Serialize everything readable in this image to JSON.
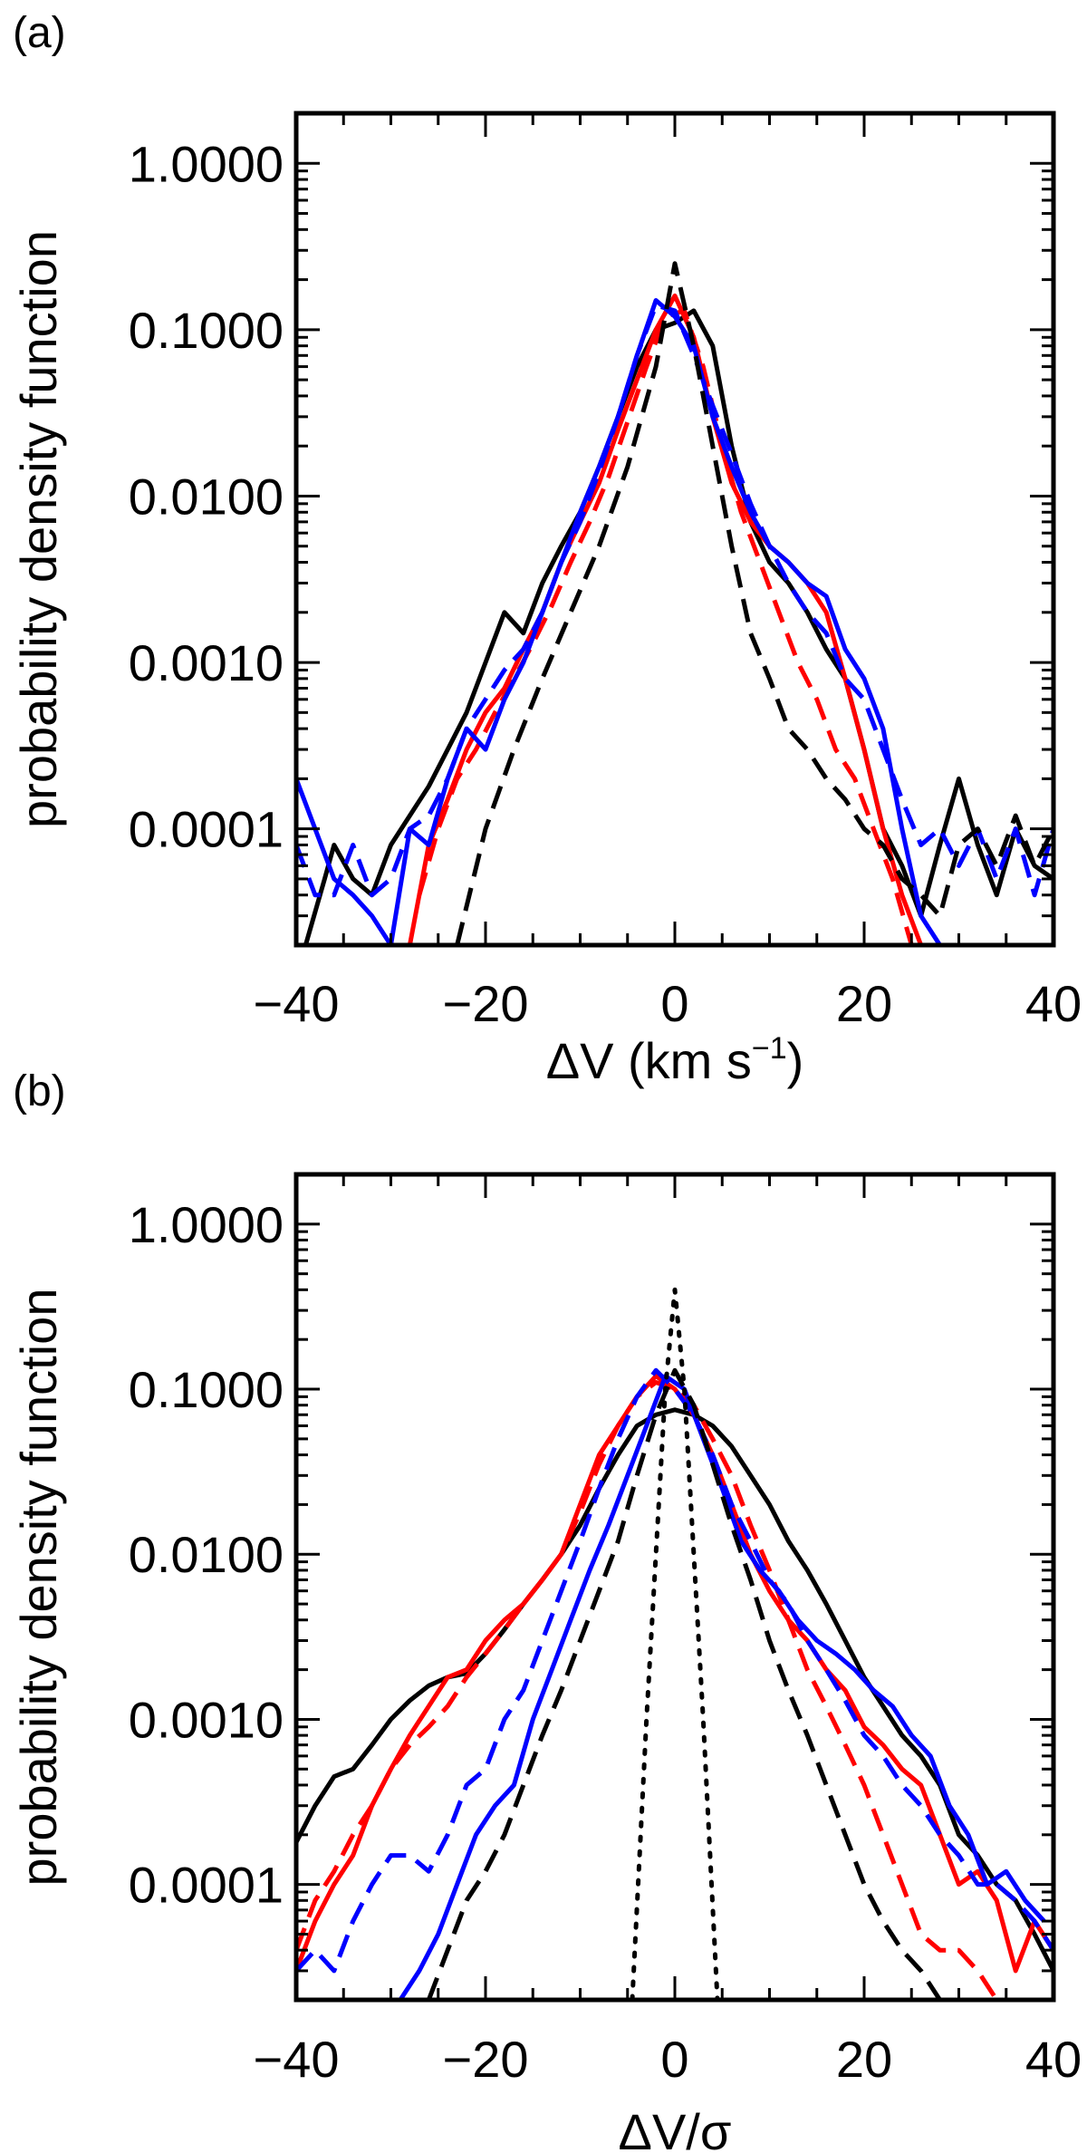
{
  "chart_data": [
    {
      "type": "line",
      "panel_label": "(a)",
      "xlabel": "ΔV (km s",
      "xlabel_sup": "−1",
      "xlabel_end": ")",
      "ylabel": "probability density function",
      "xlim": [
        -40,
        40
      ],
      "ylim": [
        2e-05,
        2.0
      ],
      "yscale": "log",
      "xticks": [
        -40,
        -20,
        0,
        20,
        40
      ],
      "xtick_labels": [
        "−40",
        "−20",
        "0",
        "20",
        "40"
      ],
      "yticks": [
        0.0001,
        0.001,
        0.01,
        0.1,
        1.0
      ],
      "ytick_labels": [
        "0.0001",
        "0.0010",
        "0.0100",
        "0.1000",
        "1.0000"
      ],
      "series": [
        {
          "name": "black solid",
          "color": "#000000",
          "dash": "solid",
          "x": [
            -39,
            -37,
            -36,
            -34,
            -32,
            -30,
            -28,
            -26,
            -24,
            -22,
            -20,
            -18,
            -16,
            -14,
            -12,
            -10,
            -8,
            -6,
            -4,
            -2,
            0,
            2,
            4,
            6,
            8,
            10,
            12,
            14,
            16,
            18,
            20,
            22,
            24,
            26,
            28,
            30,
            32,
            34,
            36,
            38,
            40
          ],
          "y": [
            2e-05,
            5e-05,
            8e-05,
            5e-05,
            4e-05,
            8e-05,
            0.00012,
            0.00018,
            0.0003,
            0.0005,
            0.001,
            0.002,
            0.0015,
            0.003,
            0.005,
            0.008,
            0.015,
            0.03,
            0.06,
            0.1,
            0.11,
            0.13,
            0.08,
            0.02,
            0.007,
            0.004,
            0.003,
            0.002,
            0.0012,
            0.0008,
            0.0003,
            0.0001,
            6e-05,
            3e-05,
            8e-05,
            0.0002,
            8e-05,
            4e-05,
            0.0001,
            6e-05,
            5e-05
          ]
        },
        {
          "name": "red solid",
          "color": "#ff0000",
          "dash": "solid",
          "x": [
            -28,
            -26,
            -24,
            -22,
            -20,
            -18,
            -16,
            -14,
            -12,
            -10,
            -8,
            -6,
            -4,
            -2,
            0,
            2,
            4,
            6,
            8,
            10,
            12,
            14,
            16,
            18,
            20,
            22,
            24,
            26
          ],
          "y": [
            2e-05,
            8e-05,
            0.00015,
            0.0003,
            0.0005,
            0.0007,
            0.0012,
            0.002,
            0.004,
            0.007,
            0.012,
            0.025,
            0.05,
            0.1,
            0.16,
            0.09,
            0.03,
            0.012,
            0.007,
            0.005,
            0.004,
            0.003,
            0.002,
            0.0008,
            0.0003,
            0.0001,
            4e-05,
            2e-05
          ]
        },
        {
          "name": "red dashed",
          "color": "#ff0000",
          "dash": "dashed",
          "x": [
            -27,
            -25,
            -23,
            -21,
            -19,
            -17,
            -15,
            -13,
            -11,
            -9,
            -7,
            -5,
            -3,
            -1,
            1,
            3,
            5,
            7,
            9,
            11,
            13,
            15,
            17,
            19,
            21,
            23,
            25
          ],
          "y": [
            4e-05,
            0.0001,
            0.0002,
            0.0003,
            0.0005,
            0.0008,
            0.0013,
            0.0022,
            0.004,
            0.007,
            0.013,
            0.028,
            0.06,
            0.12,
            0.13,
            0.06,
            0.02,
            0.008,
            0.004,
            0.002,
            0.001,
            0.0006,
            0.0003,
            0.0002,
            0.0001,
            5e-05,
            2e-05
          ]
        },
        {
          "name": "blue solid",
          "color": "#0000ff",
          "dash": "solid",
          "x": [
            -40,
            -38,
            -36,
            -34,
            -32,
            -30,
            -28,
            -26,
            -24,
            -22,
            -20,
            -18,
            -16,
            -14,
            -12,
            -10,
            -8,
            -6,
            -4,
            -2,
            0,
            2,
            4,
            6,
            8,
            10,
            12,
            14,
            16,
            18,
            20,
            22,
            24,
            26,
            28
          ],
          "y": [
            0.0002,
            0.0001,
            5e-05,
            4e-05,
            3e-05,
            2e-05,
            0.0001,
            8e-05,
            0.0002,
            0.0004,
            0.0003,
            0.0006,
            0.001,
            0.002,
            0.004,
            0.008,
            0.015,
            0.03,
            0.07,
            0.15,
            0.12,
            0.08,
            0.03,
            0.015,
            0.008,
            0.005,
            0.004,
            0.003,
            0.0025,
            0.0012,
            0.0008,
            0.0004,
            0.0001,
            3e-05,
            2e-05
          ]
        },
        {
          "name": "blue dashed",
          "color": "#0000ff",
          "dash": "dashed",
          "x": [
            -40,
            -38,
            -36,
            -34,
            -32,
            -30,
            -28,
            -26,
            -24,
            -22,
            -20,
            -18,
            -16,
            -14,
            -12,
            -10,
            -8,
            -6,
            -4,
            -2,
            0,
            2,
            4,
            6,
            8,
            10,
            12,
            14,
            16,
            18,
            20,
            22,
            24,
            26,
            28,
            30,
            32,
            34,
            36,
            38,
            40
          ],
          "y": [
            8e-05,
            4e-05,
            4e-05,
            8e-05,
            4e-05,
            5e-05,
            0.0001,
            0.00012,
            0.0002,
            0.0004,
            0.0006,
            0.0009,
            0.0012,
            0.002,
            0.004,
            0.007,
            0.014,
            0.03,
            0.07,
            0.14,
            0.13,
            0.07,
            0.035,
            0.018,
            0.009,
            0.005,
            0.003,
            0.002,
            0.0015,
            0.0008,
            0.0006,
            0.0003,
            0.00015,
            8e-05,
            0.0001,
            6e-05,
            0.0001,
            5e-05,
            0.0001,
            4e-05,
            0.0001
          ]
        },
        {
          "name": "black dashed",
          "color": "#000000",
          "dash": "dashed",
          "x": [
            -23,
            -20,
            -17,
            -14,
            -11,
            -8,
            -5,
            -2,
            0,
            2,
            4,
            6,
            8,
            10,
            12,
            14,
            16,
            18,
            20,
            22,
            24,
            26,
            28,
            30,
            32,
            34,
            36,
            38,
            40
          ],
          "y": [
            2e-05,
            0.0001,
            0.0003,
            0.0008,
            0.002,
            0.005,
            0.015,
            0.06,
            0.25,
            0.08,
            0.02,
            0.005,
            0.0015,
            0.0008,
            0.0004,
            0.0003,
            0.0002,
            0.00015,
            0.0001,
            8e-05,
            5e-05,
            4e-05,
            3e-05,
            8e-05,
            0.0001,
            6e-05,
            0.00012,
            6e-05,
            0.0001
          ]
        }
      ]
    },
    {
      "type": "line",
      "panel_label": "(b)",
      "xlabel": "ΔV/σ",
      "ylabel": "probability density function",
      "xlim": [
        -40,
        40
      ],
      "ylim": [
        2e-05,
        2.0
      ],
      "yscale": "log",
      "xticks": [
        -40,
        -20,
        0,
        20,
        40
      ],
      "xtick_labels": [
        "−40",
        "−20",
        "0",
        "20",
        "40"
      ],
      "yticks": [
        0.0001,
        0.001,
        0.01,
        0.1,
        1.0
      ],
      "ytick_labels": [
        "0.0001",
        "0.0010",
        "0.0100",
        "0.1000",
        "1.0000"
      ],
      "series": [
        {
          "name": "black solid",
          "color": "#000000",
          "dash": "solid",
          "x": [
            -40,
            -38,
            -36,
            -34,
            -32,
            -30,
            -28,
            -26,
            -24,
            -22,
            -20,
            -18,
            -16,
            -14,
            -12,
            -10,
            -8,
            -6,
            -4,
            -2,
            0,
            2,
            4,
            6,
            8,
            10,
            12,
            14,
            16,
            18,
            20,
            22,
            24,
            26,
            28,
            30,
            32,
            34,
            36,
            38,
            40
          ],
          "y": [
            0.00018,
            0.0003,
            0.00045,
            0.0005,
            0.0007,
            0.001,
            0.0013,
            0.0016,
            0.0018,
            0.0019,
            0.0025,
            0.0035,
            0.005,
            0.007,
            0.01,
            0.015,
            0.025,
            0.04,
            0.06,
            0.07,
            0.075,
            0.07,
            0.06,
            0.045,
            0.03,
            0.02,
            0.012,
            0.008,
            0.005,
            0.003,
            0.0018,
            0.0012,
            0.0008,
            0.0006,
            0.0004,
            0.0002,
            0.00015,
            0.0001,
            8e-05,
            5e-05,
            3e-05
          ]
        },
        {
          "name": "red solid",
          "color": "#ff0000",
          "dash": "solid",
          "x": [
            -40,
            -38,
            -36,
            -34,
            -32,
            -30,
            -28,
            -26,
            -24,
            -22,
            -20,
            -18,
            -16,
            -14,
            -12,
            -10,
            -8,
            -6,
            -4,
            -2,
            0,
            2,
            4,
            6,
            8,
            10,
            12,
            14,
            16,
            18,
            20,
            22,
            24,
            26,
            28,
            30,
            32,
            34,
            36,
            38,
            40
          ],
          "y": [
            3e-05,
            6e-05,
            0.0001,
            0.00015,
            0.0003,
            0.0005,
            0.0008,
            0.0012,
            0.0018,
            0.002,
            0.003,
            0.004,
            0.005,
            0.007,
            0.01,
            0.02,
            0.04,
            0.06,
            0.09,
            0.12,
            0.1,
            0.07,
            0.04,
            0.02,
            0.01,
            0.006,
            0.004,
            0.003,
            0.002,
            0.0015,
            0.0009,
            0.0007,
            0.0005,
            0.0004,
            0.0002,
            0.0001,
            0.00012,
            8e-05,
            3e-05,
            6e-05,
            4e-05
          ]
        },
        {
          "name": "red dashed",
          "color": "#ff0000",
          "dash": "dashed",
          "x": [
            -40,
            -38,
            -36,
            -34,
            -32,
            -30,
            -28,
            -26,
            -24,
            -22,
            -20,
            -18,
            -16,
            -14,
            -12,
            -10,
            -8,
            -6,
            -4,
            -2,
            0,
            2,
            4,
            6,
            8,
            10,
            12,
            14,
            16,
            18,
            20,
            22,
            24,
            26,
            28,
            30,
            32,
            34
          ],
          "y": [
            4e-05,
            8e-05,
            0.00012,
            0.0002,
            0.0003,
            0.0005,
            0.0007,
            0.0009,
            0.0012,
            0.0018,
            0.0025,
            0.0035,
            0.005,
            0.007,
            0.01,
            0.018,
            0.035,
            0.06,
            0.09,
            0.11,
            0.1,
            0.08,
            0.05,
            0.03,
            0.015,
            0.008,
            0.004,
            0.002,
            0.0012,
            0.0007,
            0.0004,
            0.0002,
            0.0001,
            5e-05,
            4e-05,
            4e-05,
            3e-05,
            2e-05
          ]
        },
        {
          "name": "blue solid",
          "color": "#0000ff",
          "dash": "solid",
          "x": [
            -29,
            -27,
            -25,
            -23,
            -21,
            -19,
            -17,
            -15,
            -13,
            -11,
            -9,
            -7,
            -5,
            -3,
            -1,
            1,
            3,
            5,
            7,
            9,
            11,
            13,
            15,
            17,
            19,
            21,
            23,
            25,
            27,
            29,
            31,
            33,
            35,
            37,
            39
          ],
          "y": [
            2e-05,
            3e-05,
            5e-05,
            0.0001,
            0.0002,
            0.0003,
            0.0004,
            0.001,
            0.002,
            0.004,
            0.008,
            0.015,
            0.03,
            0.06,
            0.12,
            0.1,
            0.05,
            0.025,
            0.012,
            0.008,
            0.006,
            0.004,
            0.003,
            0.0025,
            0.002,
            0.0015,
            0.0012,
            0.0008,
            0.0006,
            0.0003,
            0.0002,
            0.0001,
            0.00012,
            8e-05,
            6e-05
          ]
        },
        {
          "name": "blue dashed",
          "color": "#0000ff",
          "dash": "dashed",
          "x": [
            -40,
            -38,
            -36,
            -34,
            -32,
            -30,
            -28,
            -26,
            -24,
            -22,
            -20,
            -18,
            -16,
            -14,
            -12,
            -10,
            -8,
            -6,
            -4,
            -2,
            0,
            2,
            4,
            6,
            8,
            10,
            12,
            14,
            16,
            18,
            20,
            22,
            24,
            26,
            28,
            30,
            32,
            34,
            36,
            38,
            40
          ],
          "y": [
            3e-05,
            4e-05,
            3e-05,
            6e-05,
            0.0001,
            0.00015,
            0.00015,
            0.00012,
            0.0002,
            0.0004,
            0.0005,
            0.001,
            0.0015,
            0.003,
            0.006,
            0.012,
            0.025,
            0.05,
            0.09,
            0.13,
            0.1,
            0.07,
            0.04,
            0.02,
            0.012,
            0.007,
            0.005,
            0.003,
            0.002,
            0.0013,
            0.0008,
            0.0006,
            0.0004,
            0.0003,
            0.0002,
            0.00015,
            0.0001,
            0.0001,
            8e-05,
            6e-05,
            4e-05
          ]
        },
        {
          "name": "black dashed",
          "color": "#000000",
          "dash": "dashed",
          "x": [
            -26,
            -24,
            -22,
            -20,
            -18,
            -16,
            -14,
            -12,
            -10,
            -8,
            -6,
            -4,
            -2,
            0,
            2,
            4,
            6,
            8,
            10,
            12,
            14,
            16,
            18,
            20,
            22,
            24,
            26,
            28,
            30,
            32
          ],
          "y": [
            2e-05,
            4e-05,
            8e-05,
            0.00012,
            0.0002,
            0.0004,
            0.0008,
            0.0015,
            0.003,
            0.006,
            0.012,
            0.03,
            0.07,
            0.13,
            0.08,
            0.035,
            0.015,
            0.007,
            0.003,
            0.0015,
            0.0008,
            0.0004,
            0.0002,
            0.0001,
            6e-05,
            4e-05,
            3e-05,
            2e-05,
            2e-05,
            2e-05
          ]
        },
        {
          "name": "black dotted",
          "color": "#000000",
          "dash": "dotted",
          "x": [
            -4.5,
            -3,
            -2,
            -1,
            0,
            1,
            2,
            3,
            4.5
          ],
          "y": [
            2e-05,
            0.001,
            0.01,
            0.1,
            0.4,
            0.1,
            0.01,
            0.001,
            2e-05
          ]
        }
      ]
    }
  ]
}
